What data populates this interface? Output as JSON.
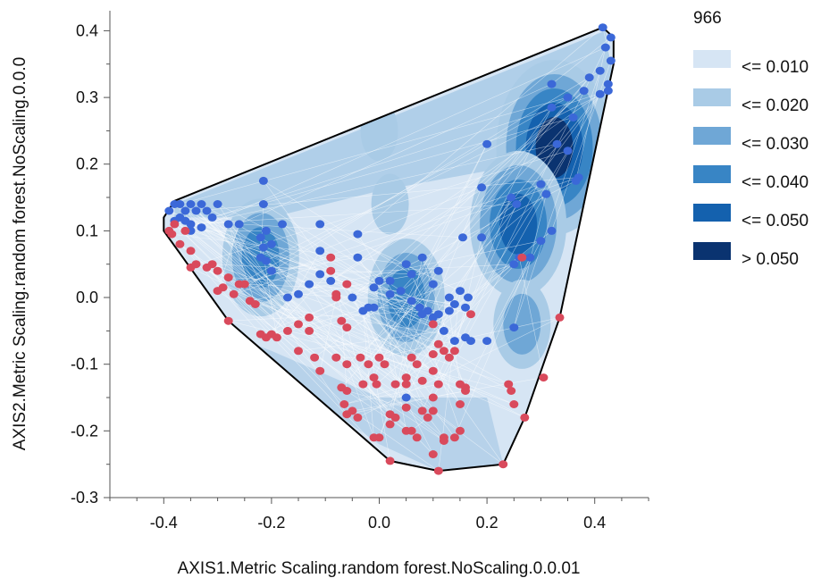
{
  "chart_data": {
    "type": "scatter",
    "xlabel": "AXIS1.Metric Scaling.random forest.NoScaling.0.0.01",
    "ylabel": "AXIS2.Metric Scaling.random forest.NoScaling.0.0.0",
    "xlim": [
      -0.5,
      0.5
    ],
    "ylim": [
      -0.3,
      0.43
    ],
    "x_ticks": [
      "-0.4",
      "-0.2",
      "0.0",
      "0.2",
      "0.4"
    ],
    "x_tick_values": [
      -0.4,
      -0.2,
      0.0,
      0.2,
      0.4
    ],
    "y_ticks": [
      "-0.3",
      "-0.2",
      "-0.1",
      "0.0",
      "0.1",
      "0.2",
      "0.3",
      "0.4"
    ],
    "y_tick_values": [
      -0.3,
      -0.2,
      -0.1,
      0.0,
      0.1,
      0.2,
      0.3,
      0.4
    ],
    "grid": false,
    "legend": {
      "title": "966",
      "position": "right",
      "entries": [
        {
          "label": "<= 0.010",
          "color": "#d6e5f4"
        },
        {
          "label": "<= 0.020",
          "color": "#a9cbe6"
        },
        {
          "label": "<= 0.030",
          "color": "#6fa7d6"
        },
        {
          "label": "<= 0.040",
          "color": "#3885c5"
        },
        {
          "label": "<= 0.050",
          "color": "#1461ae"
        },
        {
          "label": "> 0.050",
          "color": "#0a3370"
        }
      ]
    },
    "hull": [
      [
        -0.4,
        0.12
      ],
      [
        -0.38,
        0.145
      ],
      [
        0.415,
        0.405
      ],
      [
        0.435,
        0.39
      ],
      [
        0.435,
        0.35
      ],
      [
        0.335,
        -0.03
      ],
      [
        0.27,
        -0.18
      ],
      [
        0.23,
        -0.25
      ],
      [
        0.11,
        -0.26
      ],
      [
        0.02,
        -0.245
      ],
      [
        -0.28,
        -0.035
      ],
      [
        -0.4,
        0.1
      ]
    ],
    "hotspots": [
      {
        "x": 0.325,
        "y": 0.225,
        "level": 6
      },
      {
        "x": 0.258,
        "y": 0.11,
        "level": 5
      },
      {
        "x": 0.05,
        "y": 0.0,
        "level": 4
      },
      {
        "x": -0.22,
        "y": 0.06,
        "level": 4
      },
      {
        "x": 0.265,
        "y": -0.04,
        "level": 3
      },
      {
        "x": 0.02,
        "y": 0.14,
        "level": 2
      },
      {
        "x": 0.0,
        "y": 0.25,
        "level": 2
      }
    ],
    "series": [
      {
        "color": "#3b68d8",
        "points": [
          [
            0.415,
            0.405
          ],
          [
            0.43,
            0.39
          ],
          [
            0.42,
            0.375
          ],
          [
            0.43,
            0.355
          ],
          [
            0.41,
            0.34
          ],
          [
            0.425,
            0.32
          ],
          [
            0.39,
            0.33
          ],
          [
            0.38,
            0.31
          ],
          [
            0.41,
            0.305
          ],
          [
            0.425,
            0.31
          ],
          [
            0.32,
            0.32
          ],
          [
            0.35,
            0.3
          ],
          [
            0.36,
            0.27
          ],
          [
            0.32,
            0.285
          ],
          [
            0.33,
            0.23
          ],
          [
            0.35,
            0.22
          ],
          [
            0.37,
            0.18
          ],
          [
            0.365,
            0.175
          ],
          [
            0.3,
            0.17
          ],
          [
            0.31,
            0.155
          ],
          [
            0.2,
            0.23
          ],
          [
            0.19,
            0.165
          ],
          [
            0.245,
            0.15
          ],
          [
            0.255,
            0.14
          ],
          [
            0.32,
            0.1
          ],
          [
            0.3,
            0.085
          ],
          [
            0.28,
            0.06
          ],
          [
            0.26,
            0.06
          ],
          [
            0.25,
            0.05
          ],
          [
            0.19,
            0.09
          ],
          [
            0.155,
            0.09
          ],
          [
            0.25,
            -0.045
          ],
          [
            0.2,
            -0.065
          ],
          [
            0.165,
            0.0
          ],
          [
            0.16,
            -0.015
          ],
          [
            0.14,
            -0.01
          ],
          [
            0.13,
            -0.02
          ],
          [
            0.11,
            -0.025
          ],
          [
            0.1,
            -0.03
          ],
          [
            0.09,
            -0.02
          ],
          [
            0.08,
            -0.025
          ],
          [
            0.075,
            -0.015
          ],
          [
            0.06,
            -0.005
          ],
          [
            0.05,
            0.05
          ],
          [
            0.06,
            0.035
          ],
          [
            0.04,
            0.01
          ],
          [
            0.02,
            0.025
          ],
          [
            0.02,
            0.005
          ],
          [
            0.1,
            0.02
          ],
          [
            0.11,
            0.04
          ],
          [
            0.08,
            0.06
          ],
          [
            0.0,
            0.025
          ],
          [
            -0.01,
            0.015
          ],
          [
            -0.02,
            -0.015
          ],
          [
            -0.01,
            -0.015
          ],
          [
            -0.03,
            -0.02
          ],
          [
            -0.04,
            0.06
          ],
          [
            -0.04,
            0.095
          ],
          [
            -0.05,
            0.0
          ],
          [
            -0.09,
            0.025
          ],
          [
            -0.11,
            0.07
          ],
          [
            -0.11,
            0.035
          ],
          [
            -0.13,
            0.02
          ],
          [
            -0.15,
            0.005
          ],
          [
            -0.17,
            0.0
          ],
          [
            -0.2,
            0.04
          ],
          [
            -0.21,
            0.055
          ],
          [
            -0.22,
            0.09
          ],
          [
            -0.2,
            0.08
          ],
          [
            -0.215,
            0.075
          ],
          [
            -0.22,
            0.06
          ],
          [
            -0.18,
            0.11
          ],
          [
            -0.21,
            0.1
          ],
          [
            -0.26,
            0.11
          ],
          [
            -0.28,
            0.11
          ],
          [
            -0.3,
            0.14
          ],
          [
            -0.32,
            0.13
          ],
          [
            -0.33,
            0.14
          ],
          [
            -0.35,
            0.14
          ],
          [
            -0.36,
            0.13
          ],
          [
            -0.37,
            0.14
          ],
          [
            -0.38,
            0.14
          ],
          [
            -0.39,
            0.13
          ],
          [
            -0.38,
            0.115
          ],
          [
            -0.37,
            0.12
          ],
          [
            -0.35,
            0.1
          ],
          [
            -0.33,
            0.105
          ],
          [
            -0.31,
            0.12
          ],
          [
            -0.34,
            0.13
          ],
          [
            -0.35,
            0.11
          ],
          [
            -0.36,
            0.115
          ],
          [
            -0.215,
            0.14
          ],
          [
            -0.215,
            0.175
          ],
          [
            -0.11,
            0.11
          ],
          [
            0.05,
            -0.15
          ],
          [
            0.12,
            -0.05
          ],
          [
            0.14,
            -0.065
          ],
          [
            0.16,
            -0.06
          ],
          [
            0.17,
            -0.065
          ],
          [
            0.15,
            0.01
          ],
          [
            0.13,
            0.0
          ]
        ]
      },
      {
        "color": "#d94a5c",
        "points": [
          [
            -0.39,
            0.1
          ],
          [
            -0.38,
            0.11
          ],
          [
            -0.385,
            0.095
          ],
          [
            -0.37,
            0.08
          ],
          [
            -0.36,
            0.1
          ],
          [
            -0.35,
            0.07
          ],
          [
            -0.35,
            0.045
          ],
          [
            -0.34,
            0.05
          ],
          [
            -0.32,
            0.045
          ],
          [
            -0.31,
            0.05
          ],
          [
            -0.3,
            0.04
          ],
          [
            -0.3,
            0.01
          ],
          [
            -0.29,
            0.015
          ],
          [
            -0.28,
            0.03
          ],
          [
            -0.27,
            0.005
          ],
          [
            -0.26,
            0.02
          ],
          [
            -0.25,
            0.02
          ],
          [
            -0.24,
            -0.005
          ],
          [
            -0.23,
            -0.01
          ],
          [
            -0.28,
            -0.035
          ],
          [
            -0.22,
            -0.055
          ],
          [
            -0.21,
            -0.06
          ],
          [
            -0.2,
            -0.055
          ],
          [
            -0.19,
            -0.06
          ],
          [
            -0.17,
            -0.05
          ],
          [
            -0.15,
            -0.04
          ],
          [
            -0.13,
            -0.03
          ],
          [
            -0.15,
            -0.08
          ],
          [
            -0.12,
            -0.09
          ],
          [
            -0.11,
            -0.11
          ],
          [
            -0.09,
            0.06
          ],
          [
            -0.09,
            0.04
          ],
          [
            -0.08,
            0.0
          ],
          [
            -0.07,
            -0.035
          ],
          [
            -0.08,
            -0.09
          ],
          [
            -0.06,
            -0.1
          ],
          [
            -0.06,
            -0.14
          ],
          [
            -0.07,
            -0.135
          ],
          [
            -0.065,
            -0.16
          ],
          [
            -0.06,
            -0.175
          ],
          [
            -0.05,
            -0.17
          ],
          [
            -0.04,
            -0.18
          ],
          [
            -0.03,
            -0.13
          ],
          [
            -0.035,
            -0.09
          ],
          [
            -0.02,
            -0.1
          ],
          [
            -0.01,
            -0.12
          ],
          [
            -0.005,
            -0.13
          ],
          [
            0.0,
            -0.09
          ],
          [
            0.01,
            -0.1
          ],
          [
            0.0,
            -0.21
          ],
          [
            -0.01,
            -0.21
          ],
          [
            0.02,
            -0.19
          ],
          [
            0.02,
            -0.175
          ],
          [
            0.03,
            -0.18
          ],
          [
            0.03,
            -0.13
          ],
          [
            0.05,
            -0.13
          ],
          [
            0.05,
            -0.12
          ],
          [
            0.05,
            -0.165
          ],
          [
            0.05,
            -0.2
          ],
          [
            0.06,
            -0.2
          ],
          [
            0.06,
            -0.09
          ],
          [
            0.07,
            -0.1
          ],
          [
            0.08,
            -0.125
          ],
          [
            0.08,
            -0.17
          ],
          [
            0.07,
            -0.21
          ],
          [
            0.09,
            -0.18
          ],
          [
            0.1,
            -0.17
          ],
          [
            0.1,
            -0.11
          ],
          [
            0.1,
            -0.085
          ],
          [
            0.11,
            -0.07
          ],
          [
            0.1,
            -0.04
          ],
          [
            0.11,
            -0.13
          ],
          [
            0.1,
            -0.15
          ],
          [
            0.12,
            -0.08
          ],
          [
            0.13,
            -0.09
          ],
          [
            0.14,
            -0.08
          ],
          [
            0.15,
            -0.13
          ],
          [
            0.16,
            -0.135
          ],
          [
            0.16,
            -0.14
          ],
          [
            0.15,
            -0.16
          ],
          [
            0.15,
            -0.2
          ],
          [
            0.12,
            -0.21
          ],
          [
            0.1,
            -0.235
          ],
          [
            0.12,
            -0.215
          ],
          [
            0.14,
            -0.21
          ],
          [
            0.11,
            -0.26
          ],
          [
            0.02,
            -0.245
          ],
          [
            0.24,
            -0.13
          ],
          [
            0.245,
            -0.14
          ],
          [
            0.25,
            -0.16
          ],
          [
            0.27,
            -0.18
          ],
          [
            0.305,
            -0.12
          ],
          [
            0.335,
            -0.03
          ],
          [
            0.23,
            -0.25
          ],
          [
            0.265,
            0.06
          ],
          [
            0.17,
            -0.025
          ],
          [
            -0.08,
            0.005
          ],
          [
            -0.06,
            0.02
          ],
          [
            -0.13,
            -0.05
          ],
          [
            -0.06,
            -0.045
          ]
        ]
      }
    ]
  }
}
